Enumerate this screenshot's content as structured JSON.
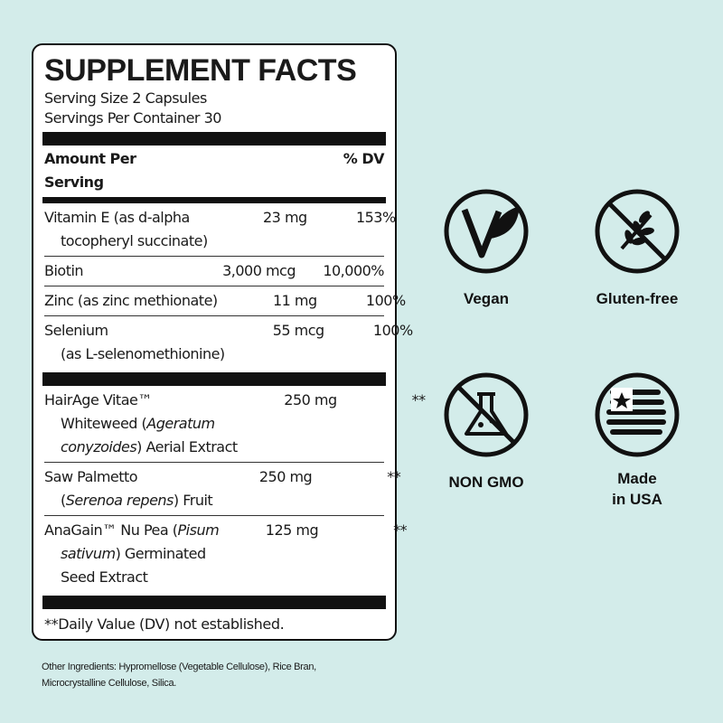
{
  "label": {
    "title": "SUPPLEMENT FACTS",
    "serving_size": "Serving Size 2 Capsules",
    "servings_per_container": "Servings Per Container 30",
    "header": {
      "amount": "Amount Per Serving",
      "dv": "% DV"
    },
    "groups": [
      [
        {
          "name": [
            [
              "Vitamin E (as d-alpha"
            ],
            [
              "tocopheryl succinate)"
            ]
          ],
          "amount": "23 mg",
          "dv": "153%"
        },
        {
          "name": [
            [
              "Biotin"
            ]
          ],
          "amount": "3,000 mcg",
          "dv": "10,000%"
        },
        {
          "name": [
            [
              "Zinc (as zinc methionate)"
            ]
          ],
          "amount": "11 mg",
          "dv": "100%"
        },
        {
          "name": [
            [
              "Selenium"
            ],
            [
              "(as L-selenomethionine)"
            ]
          ],
          "amount": "55 mcg",
          "dv": "100%"
        }
      ],
      [
        {
          "name": [
            [
              "HairAge Vitae™"
            ],
            [
              "Whiteweed (",
              {
                "text": "Ageratum",
                "italic": true
              }
            ],
            [
              {
                "text": "conyzoides",
                "italic": true
              },
              ") Aerial Extract"
            ]
          ],
          "amount": "250 mg",
          "dv": "**"
        },
        {
          "name": [
            [
              "Saw Palmetto"
            ],
            [
              "(",
              {
                "text": "Serenoa repens",
                "italic": true
              },
              ") Fruit"
            ]
          ],
          "amount": "250 mg",
          "dv": "**"
        },
        {
          "name": [
            [
              "AnaGain™ Nu Pea (",
              {
                "text": "Pisum",
                "italic": true
              }
            ],
            [
              {
                "text": "sativum",
                "italic": true
              },
              ") Germinated"
            ],
            [
              "Seed Extract"
            ]
          ],
          "amount": "125 mg",
          "dv": "**"
        }
      ]
    ],
    "footnote": "**Daily Value (DV) not established."
  },
  "other_ingredients": [
    "Other Ingredients: Hypromellose (Vegetable Cellulose), Rice Bran,",
    "Microcrystalline Cellulose, Silica."
  ],
  "badges": [
    [
      "Vegan"
    ],
    [
      "Gluten-free"
    ],
    [
      "NON GMO"
    ],
    [
      "Made",
      "in USA"
    ]
  ]
}
